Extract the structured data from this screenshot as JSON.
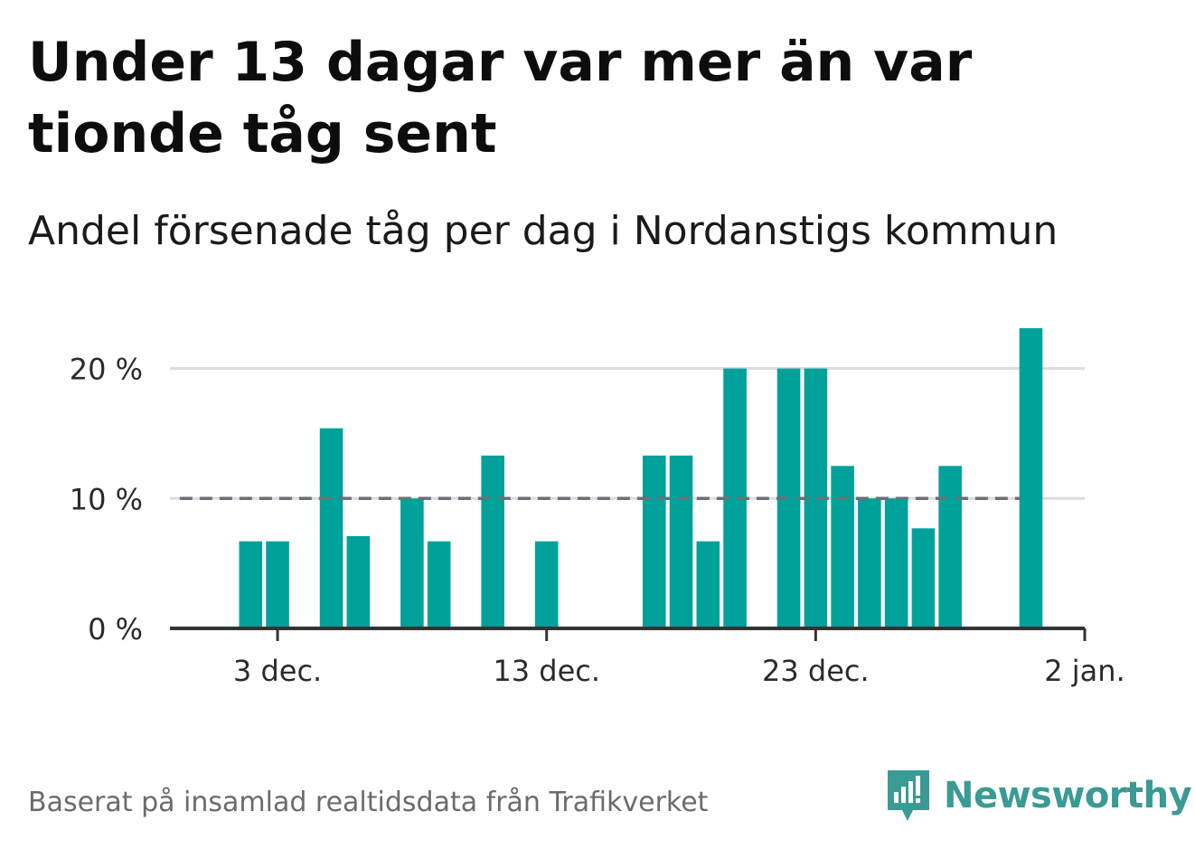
{
  "title": "Under 13 dagar var mer än var tionde tåg sent",
  "subtitle": "Andel försenade tåg per dag i Nordanstigs kommun",
  "footer": {
    "source": "Baserat på insamlad realtidsdata från Trafikverket",
    "brand": "Newsworthy",
    "logo_icon": "newsworthy-logo-icon"
  },
  "colors": {
    "bar": "#00a19a",
    "reference_line": "#6e6e78",
    "grid": "#dcdcdc",
    "axis": "#333333",
    "brand": "#3a9a94"
  },
  "chart_data": {
    "type": "bar",
    "title": "Andel försenade tåg per dag i Nordanstigs kommun",
    "xlabel": "",
    "ylabel": "",
    "x": [
      "2023-12-02",
      "2023-12-03",
      "2023-12-05",
      "2023-12-06",
      "2023-12-08",
      "2023-12-09",
      "2023-12-11",
      "2023-12-13",
      "2023-12-17",
      "2023-12-18",
      "2023-12-19",
      "2023-12-20",
      "2023-12-22",
      "2023-12-23",
      "2023-12-24",
      "2023-12-25",
      "2023-12-26",
      "2023-12-27",
      "2023-12-28",
      "2023-12-31"
    ],
    "values": [
      6.7,
      6.7,
      15.4,
      7.1,
      10.0,
      6.7,
      13.3,
      6.7,
      13.3,
      13.3,
      6.7,
      20.0,
      20.0,
      20.0,
      12.5,
      10.0,
      10.0,
      7.7,
      12.5,
      23.1
    ],
    "unit": "%",
    "reference_line": {
      "value": 10,
      "style": "dashed",
      "x_range": [
        "2023-11-29",
        "2024-01-01"
      ]
    },
    "xlim": [
      "2023-11-29",
      "2024-01-02"
    ],
    "ylim": [
      0,
      23.1
    ],
    "x_ticks": [
      {
        "date": "2023-12-03",
        "label": "3 dec."
      },
      {
        "date": "2023-12-13",
        "label": "13 dec."
      },
      {
        "date": "2023-12-23",
        "label": "23 dec."
      },
      {
        "date": "2024-01-02",
        "label": "2 jan."
      }
    ],
    "y_ticks": [
      {
        "value": 0,
        "label": "0 %"
      },
      {
        "value": 10,
        "label": "10 %"
      },
      {
        "value": 20,
        "label": "20 %"
      }
    ],
    "grid": true,
    "legend": "none"
  }
}
